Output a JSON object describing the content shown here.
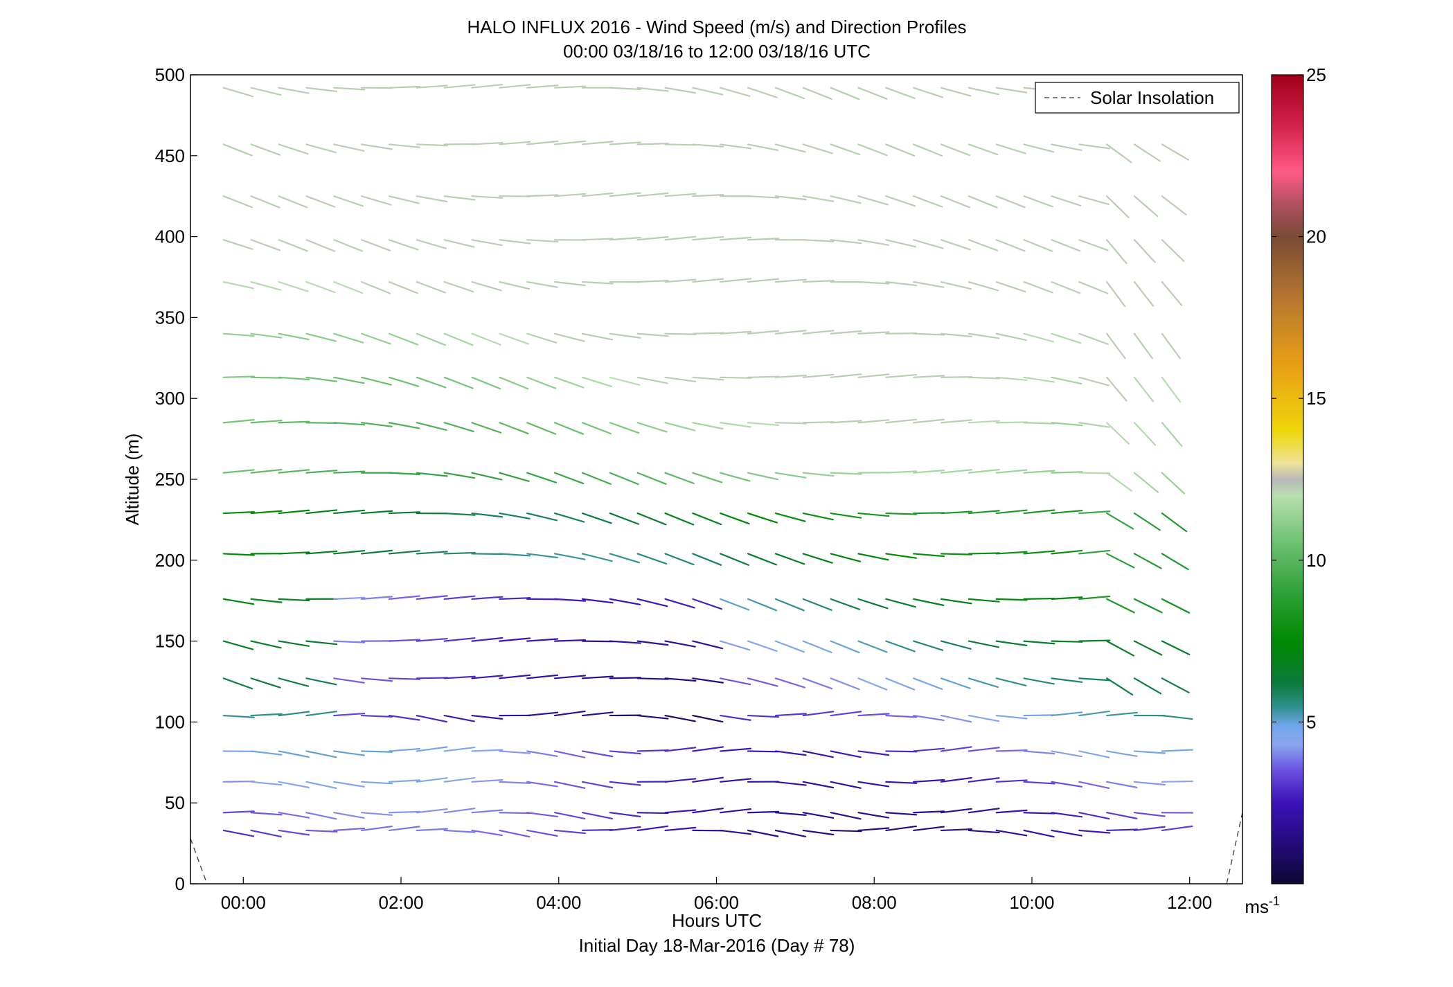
{
  "chart_data": {
    "type": "scatter",
    "title": "HALO INFLUX 2016 - Wind Speed (m/s) and Direction Profiles",
    "subtitle": "00:00 03/18/16 to 12:00 03/18/16  UTC",
    "xlabel": "Hours UTC",
    "xlabel2": "Initial Day 18-Mar-2016 (Day # 78)",
    "ylabel": "Altitude (m)",
    "xlim": [
      -0.67,
      12.67
    ],
    "ylim": [
      0,
      500
    ],
    "x_ticks": [
      {
        "value": 0,
        "label": "00:00"
      },
      {
        "value": 2,
        "label": "02:00"
      },
      {
        "value": 4,
        "label": "04:00"
      },
      {
        "value": 6,
        "label": "06:00"
      },
      {
        "value": 8,
        "label": "08:00"
      },
      {
        "value": 10,
        "label": "10:00"
      },
      {
        "value": 12,
        "label": "12:00"
      }
    ],
    "y_ticks": [
      {
        "value": 0,
        "label": "0"
      },
      {
        "value": 50,
        "label": "50"
      },
      {
        "value": 100,
        "label": "100"
      },
      {
        "value": 150,
        "label": "150"
      },
      {
        "value": 200,
        "label": "200"
      },
      {
        "value": 250,
        "label": "250"
      },
      {
        "value": 300,
        "label": "300"
      },
      {
        "value": 350,
        "label": "350"
      },
      {
        "value": 400,
        "label": "400"
      },
      {
        "value": 450,
        "label": "450"
      },
      {
        "value": 500,
        "label": "500"
      }
    ],
    "legend": {
      "label": "Solar Insolation",
      "placement": "top-right"
    },
    "colorbar": {
      "range": [
        0,
        25
      ],
      "ticks": [
        {
          "value": 5,
          "label": "5"
        },
        {
          "value": 10,
          "label": "10"
        },
        {
          "value": 15,
          "label": "15"
        },
        {
          "value": 20,
          "label": "20"
        },
        {
          "value": 25,
          "label": "25"
        }
      ],
      "unit_base": "ms",
      "unit_exp": "-1",
      "stops": [
        {
          "v": 0,
          "c": "#0b0830"
        },
        {
          "v": 1,
          "c": "#1f0a6e"
        },
        {
          "v": 2.5,
          "c": "#3a12b8"
        },
        {
          "v": 3.5,
          "c": "#6a4fe0"
        },
        {
          "v": 4.3,
          "c": "#8aa6f2"
        },
        {
          "v": 4.9,
          "c": "#6fa5e8"
        },
        {
          "v": 5.5,
          "c": "#2e8f8a"
        },
        {
          "v": 6.2,
          "c": "#0c7a3a"
        },
        {
          "v": 7.5,
          "c": "#008a00"
        },
        {
          "v": 9,
          "c": "#2fa03a"
        },
        {
          "v": 10.5,
          "c": "#6cc070"
        },
        {
          "v": 12,
          "c": "#b8dfb0"
        },
        {
          "v": 12.5,
          "c": "#b8b8b8"
        },
        {
          "v": 13,
          "c": "#efe39a"
        },
        {
          "v": 14,
          "c": "#eed60a"
        },
        {
          "v": 16,
          "c": "#e8a015"
        },
        {
          "v": 18,
          "c": "#b8792e"
        },
        {
          "v": 20,
          "c": "#7a4a36"
        },
        {
          "v": 21,
          "c": "#b05060"
        },
        {
          "v": 22,
          "c": "#ff5a86"
        },
        {
          "v": 23.5,
          "c": "#d0204a"
        },
        {
          "v": 25,
          "c": "#a00018"
        }
      ]
    },
    "solar_insolation": [
      [
        -0.67,
        28
      ],
      [
        -0.46,
        0
      ],
      [
        12.47,
        0
      ],
      [
        12.67,
        44
      ]
    ],
    "altitudes": [
      33,
      44,
      63,
      82,
      104,
      127,
      150,
      176,
      204,
      229,
      254,
      285,
      313,
      340,
      372,
      398,
      425,
      457,
      492
    ],
    "times": [
      -0.25,
      0.1,
      0.45,
      0.8,
      1.15,
      1.5,
      1.85,
      2.2,
      2.55,
      2.9,
      3.25,
      3.6,
      3.95,
      4.3,
      4.65,
      5.0,
      5.35,
      5.7,
      6.05,
      6.4,
      6.75,
      7.1,
      7.45,
      7.8,
      8.15,
      8.5,
      8.85,
      9.2,
      9.55,
      9.9,
      10.25,
      10.6,
      10.95,
      11.3,
      11.65
    ]
  }
}
